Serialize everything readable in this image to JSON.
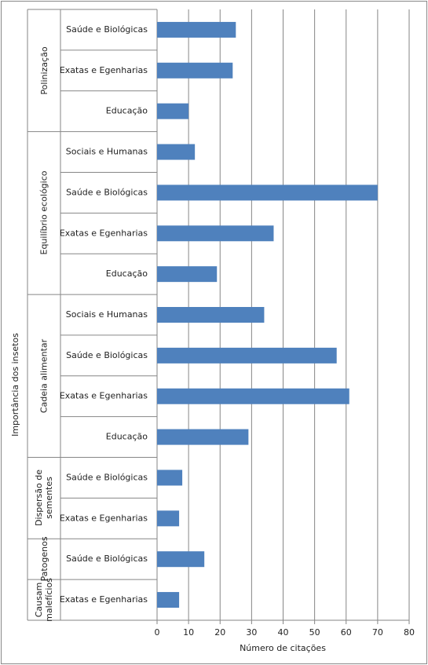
{
  "chart_data": {
    "type": "bar",
    "orientation": "horizontal",
    "xlabel": "Número de citações",
    "ylabel": "Importância dos insetos",
    "color": "#4f81bd",
    "grid": true,
    "xlim": [
      0,
      80
    ],
    "xticks": [
      0,
      10,
      20,
      30,
      40,
      50,
      60,
      70,
      80
    ],
    "groups": [
      {
        "name": "Polinização",
        "categories": [
          "Saúde e Biológicas",
          "Exatas e Egenharias",
          "Educação"
        ],
        "values": [
          25,
          24,
          10
        ]
      },
      {
        "name": "Equilíbrio ecológico",
        "categories": [
          "Sociais e Humanas",
          "Saúde e Biológicas",
          "Exatas e Egenharias",
          "Educação"
        ],
        "values": [
          12,
          70,
          37,
          19
        ]
      },
      {
        "name": "Cadeia alimentar",
        "categories": [
          "Sociais e Humanas",
          "Saúde e Biológicas",
          "Exatas e Egenharias",
          "Educação"
        ],
        "values": [
          34,
          57,
          61,
          29
        ]
      },
      {
        "name": "Dispersão de sementes",
        "categories": [
          "Saúde e Biológicas",
          "Exatas e Egenharias"
        ],
        "values": [
          8,
          7
        ]
      },
      {
        "name": "Patogenos",
        "categories": [
          "Saúde e Biológicas"
        ],
        "values": [
          15
        ]
      },
      {
        "name": "Causam malefícios",
        "categories": [
          "Exatas e Egenharias"
        ],
        "values": [
          7
        ]
      }
    ]
  }
}
